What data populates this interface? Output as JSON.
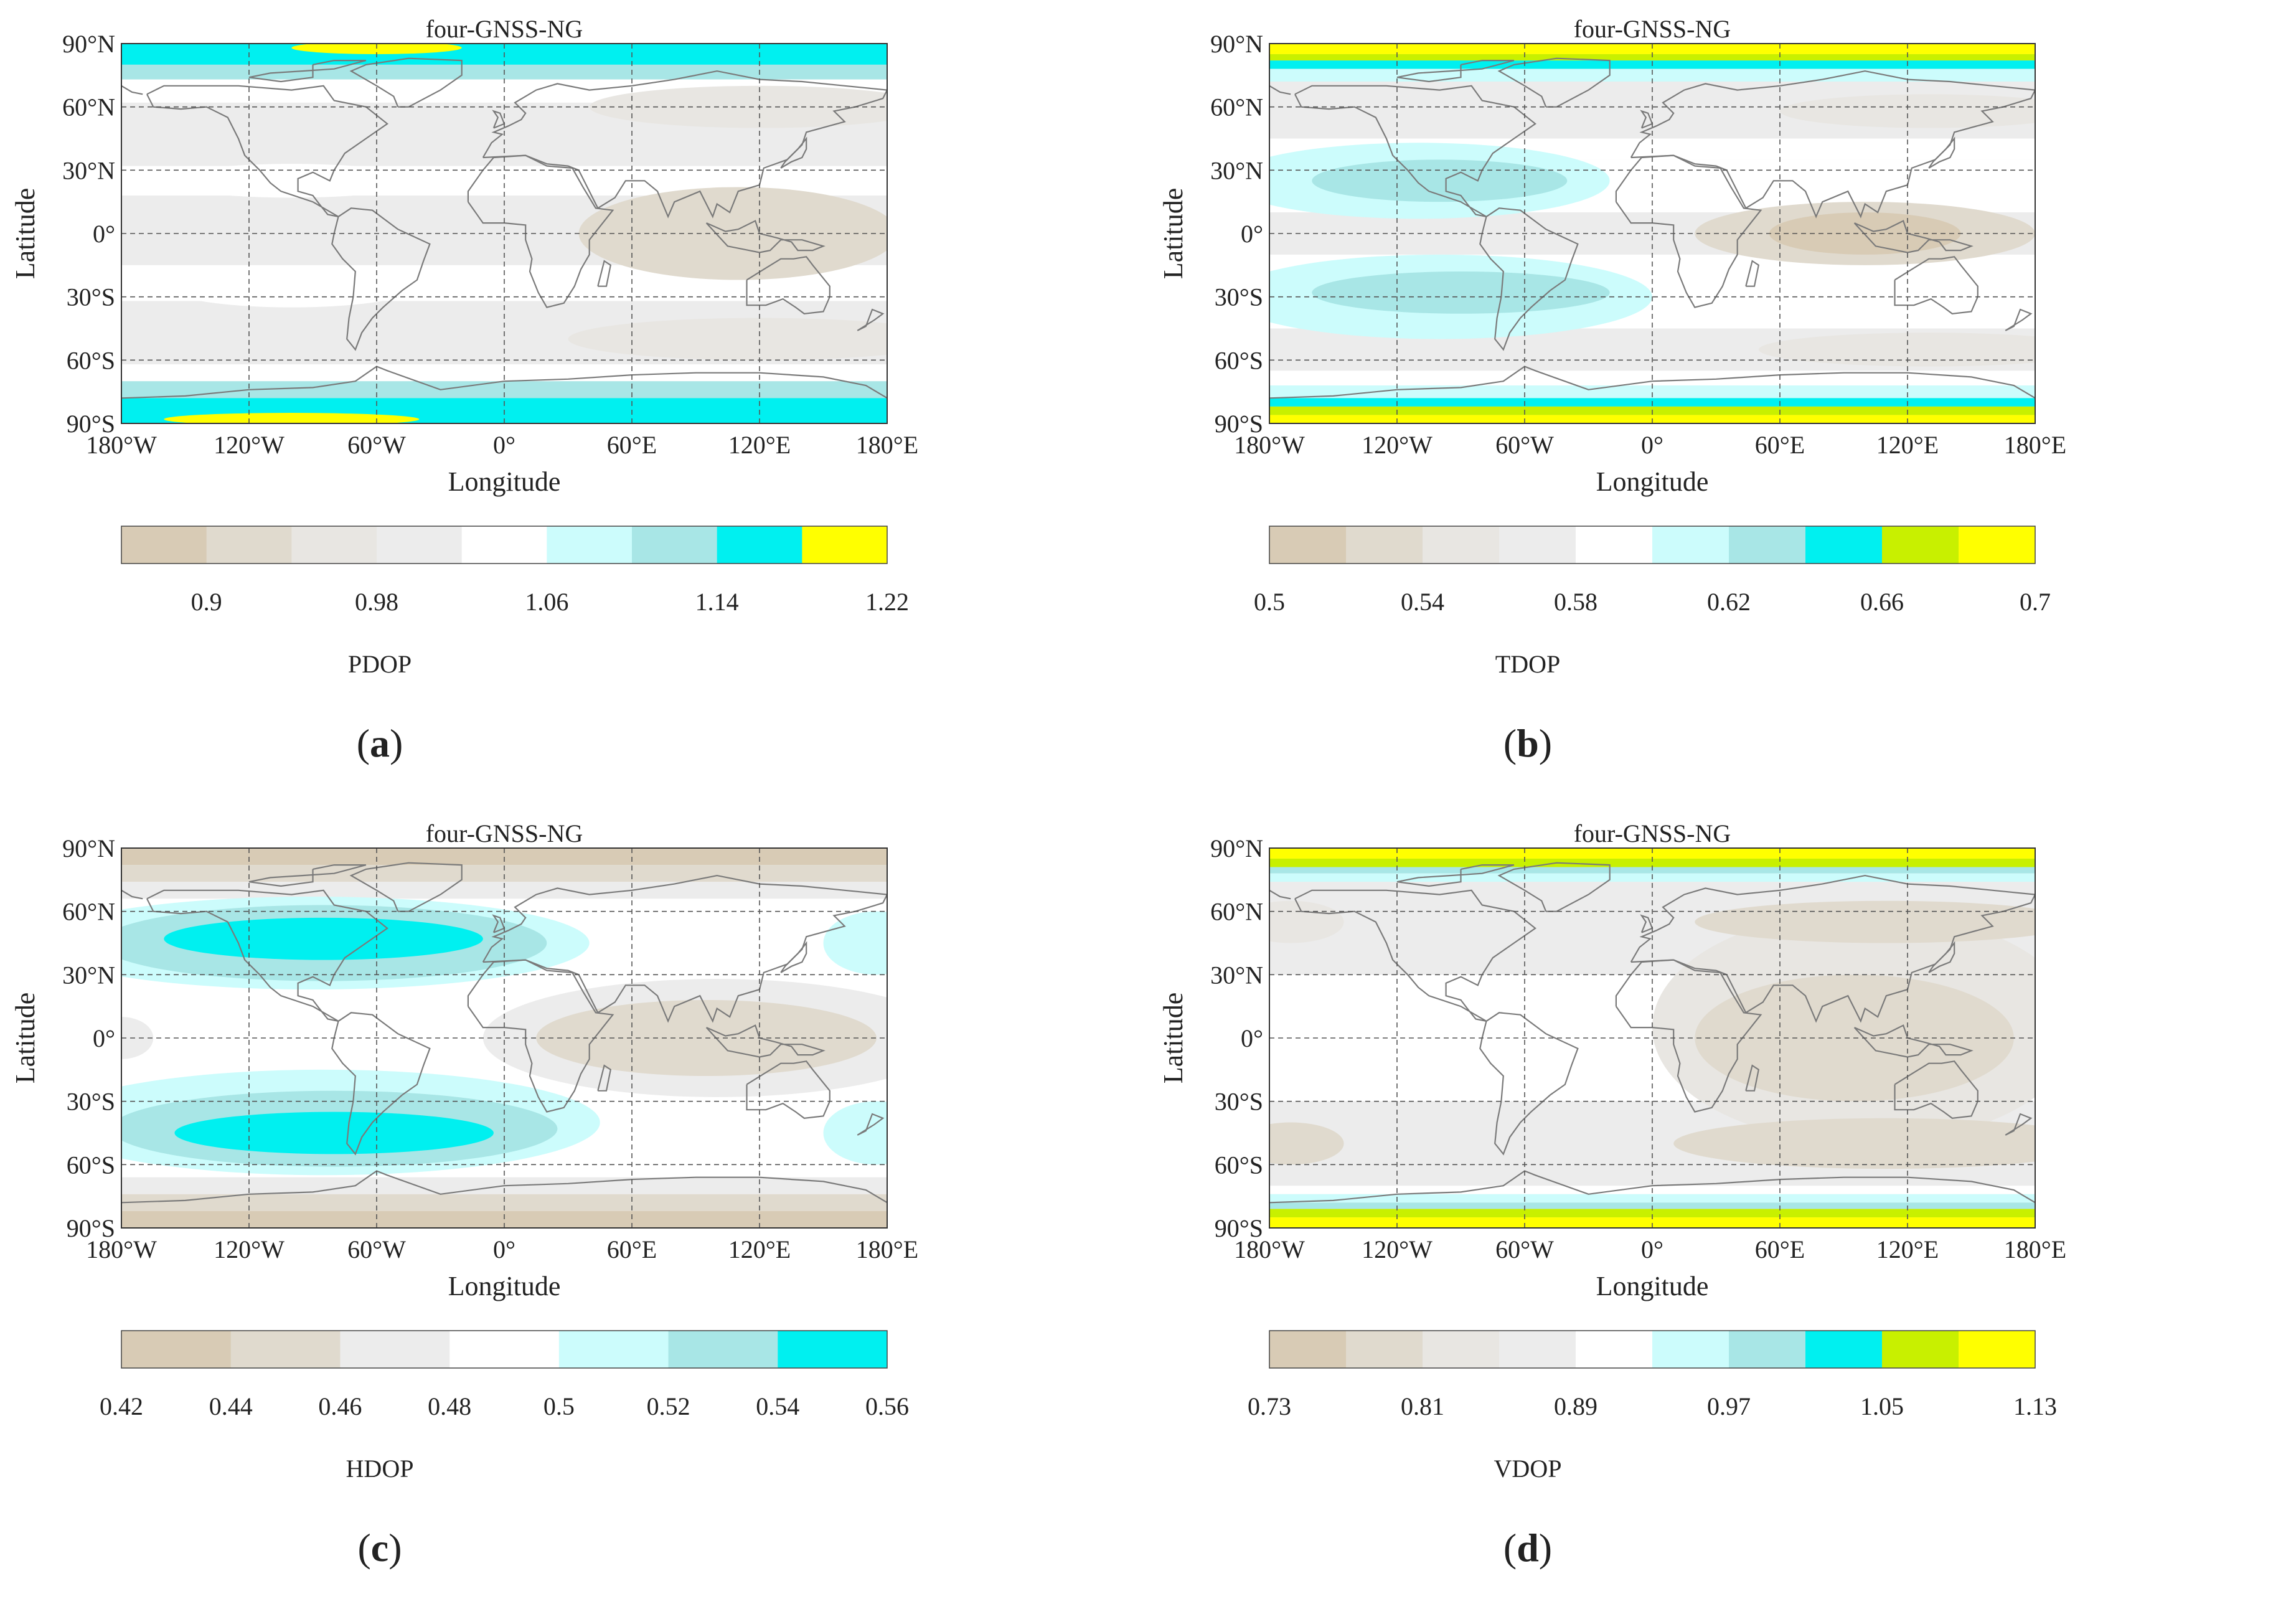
{
  "chart_data": [
    {
      "type": "heatmap",
      "panel_label": "a",
      "title": "four-GNSS-NG",
      "xlabel": "Longitude",
      "ylabel": "Latitude",
      "x_ticks": [
        "180°W",
        "120°W",
        "60°W",
        "0°",
        "60°E",
        "120°E",
        "180°E"
      ],
      "y_ticks": [
        "90°N",
        "60°N",
        "30°N",
        "0°",
        "30°S",
        "60°S",
        "90°S"
      ],
      "xlim": [
        -180,
        180
      ],
      "ylim": [
        -90,
        90
      ],
      "colorbar": {
        "label": "PDOP",
        "ticks": [
          "0.9",
          "0.98",
          "1.06",
          "1.14",
          "1.22"
        ],
        "colors": [
          "#d8cbb5",
          "#e0dace",
          "#e8e6e2",
          "#ececec",
          "#ffffff",
          "#ccfcfc",
          "#a8e6e6",
          "#00f0f0",
          "#ffff00"
        ]
      },
      "bands": [
        {
          "lat": [
            80,
            90
          ],
          "level": 7
        },
        {
          "lat": [
            73,
            80
          ],
          "level": 6
        },
        {
          "lat": [
            62,
            73
          ],
          "level": 4
        },
        {
          "lat": [
            32,
            62
          ],
          "level": 3
        },
        {
          "lat": [
            18,
            32
          ],
          "level": 4
        },
        {
          "lat": [
            8,
            18
          ],
          "level": 3
        },
        {
          "lat": [
            -8,
            8
          ],
          "level": 3
        },
        {
          "lat": [
            -15,
            -8
          ],
          "level": 3
        },
        {
          "lat": [
            -32,
            -15
          ],
          "level": 4
        },
        {
          "lat": [
            -62,
            -32
          ],
          "level": 3
        },
        {
          "lat": [
            -70,
            -62
          ],
          "level": 4
        },
        {
          "lat": [
            -78,
            -70
          ],
          "level": 6
        },
        {
          "lat": [
            -90,
            -78
          ],
          "level": 7
        }
      ],
      "blobs": [
        {
          "lon": 110,
          "lat": 0,
          "rlon": 75,
          "rlat": 22,
          "level": 1
        },
        {
          "lon": 120,
          "lat": -50,
          "rlon": 90,
          "rlat": 10,
          "level": 2
        },
        {
          "lon": 120,
          "lat": 60,
          "rlon": 80,
          "rlat": 10,
          "level": 2
        },
        {
          "lon": -100,
          "lat": -25,
          "rlon": 60,
          "rlat": 10,
          "level": 4
        },
        {
          "lon": -100,
          "lat": 25,
          "rlon": 60,
          "rlat": 8,
          "level": 4
        },
        {
          "lon": -60,
          "lat": 88,
          "rlon": 40,
          "rlat": 3,
          "level": 8
        },
        {
          "lon": -100,
          "lat": -88,
          "rlon": 60,
          "rlat": 3,
          "level": 8
        }
      ]
    },
    {
      "type": "heatmap",
      "panel_label": "b",
      "title": "four-GNSS-NG",
      "xlabel": "Longitude",
      "ylabel": "Latitude",
      "x_ticks": [
        "180°W",
        "120°W",
        "60°W",
        "0°",
        "60°E",
        "120°E",
        "180°E"
      ],
      "y_ticks": [
        "90°N",
        "60°N",
        "30°N",
        "0°",
        "30°S",
        "60°S",
        "90°S"
      ],
      "xlim": [
        -180,
        180
      ],
      "ylim": [
        -90,
        90
      ],
      "colorbar": {
        "label": "TDOP",
        "ticks": [
          "0.5",
          "0.54",
          "0.58",
          "0.62",
          "0.66",
          "0.7"
        ],
        "colors": [
          "#d8cbb5",
          "#e0dace",
          "#e8e6e2",
          "#ececec",
          "#ffffff",
          "#ccfcfc",
          "#a8e6e6",
          "#00f0f0",
          "#c8f000",
          "#ffff00"
        ]
      },
      "bands": [
        {
          "lat": [
            85,
            90
          ],
          "level": 9
        },
        {
          "lat": [
            82,
            85
          ],
          "level": 8
        },
        {
          "lat": [
            78,
            82
          ],
          "level": 7
        },
        {
          "lat": [
            72,
            78
          ],
          "level": 5
        },
        {
          "lat": [
            45,
            72
          ],
          "level": 3
        },
        {
          "lat": [
            35,
            45
          ],
          "level": 4
        },
        {
          "lat": [
            10,
            35
          ],
          "level": 4
        },
        {
          "lat": [
            -10,
            10
          ],
          "level": 3
        },
        {
          "lat": [
            -45,
            -10
          ],
          "level": 4
        },
        {
          "lat": [
            -65,
            -45
          ],
          "level": 3
        },
        {
          "lat": [
            -72,
            -65
          ],
          "level": 4
        },
        {
          "lat": [
            -78,
            -72
          ],
          "level": 5
        },
        {
          "lat": [
            -82,
            -78
          ],
          "level": 7
        },
        {
          "lat": [
            -86,
            -82
          ],
          "level": 8
        },
        {
          "lat": [
            -90,
            -86
          ],
          "level": 9
        }
      ],
      "blobs": [
        {
          "lon": -110,
          "lat": 25,
          "rlon": 90,
          "rlat": 18,
          "level": 5
        },
        {
          "lon": -100,
          "lat": 25,
          "rlon": 60,
          "rlat": 10,
          "level": 6
        },
        {
          "lon": -100,
          "lat": -30,
          "rlon": 100,
          "rlat": 20,
          "level": 5
        },
        {
          "lon": -90,
          "lat": -28,
          "rlon": 70,
          "rlat": 10,
          "level": 6
        },
        {
          "lon": 100,
          "lat": 0,
          "rlon": 80,
          "rlat": 15,
          "level": 1
        },
        {
          "lon": 100,
          "lat": 0,
          "rlon": 45,
          "rlat": 10,
          "level": 0
        },
        {
          "lon": 130,
          "lat": -55,
          "rlon": 80,
          "rlat": 8,
          "level": 2
        },
        {
          "lon": 130,
          "lat": 58,
          "rlon": 70,
          "rlat": 8,
          "level": 2
        }
      ]
    },
    {
      "type": "heatmap",
      "panel_label": "c",
      "title": "four-GNSS-NG",
      "xlabel": "Longitude",
      "ylabel": "Latitude",
      "x_ticks": [
        "180°W",
        "120°W",
        "60°W",
        "0°",
        "60°E",
        "120°E",
        "180°E"
      ],
      "y_ticks": [
        "90°N",
        "60°N",
        "30°N",
        "0°",
        "30°S",
        "60°S",
        "90°S"
      ],
      "xlim": [
        -180,
        180
      ],
      "ylim": [
        -90,
        90
      ],
      "colorbar": {
        "label": "HDOP",
        "ticks": [
          "0.42",
          "0.44",
          "0.46",
          "0.48",
          "0.5",
          "0.52",
          "0.54",
          "0.56"
        ],
        "colors": [
          "#d8cbb5",
          "#e0dace",
          "#ececec",
          "#ffffff",
          "#ccfcfc",
          "#a8e6e6",
          "#00f0f0"
        ]
      },
      "bands": [
        {
          "lat": [
            82,
            90
          ],
          "level": 0
        },
        {
          "lat": [
            74,
            82
          ],
          "level": 1
        },
        {
          "lat": [
            66,
            74
          ],
          "level": 2
        },
        {
          "lat": [
            60,
            66
          ],
          "level": 3
        },
        {
          "lat": [
            15,
            60
          ],
          "level": 3
        },
        {
          "lat": [
            -15,
            15
          ],
          "level": 3
        },
        {
          "lat": [
            -60,
            -15
          ],
          "level": 3
        },
        {
          "lat": [
            -66,
            -60
          ],
          "level": 3
        },
        {
          "lat": [
            -74,
            -66
          ],
          "level": 2
        },
        {
          "lat": [
            -82,
            -74
          ],
          "level": 1
        },
        {
          "lat": [
            -90,
            -82
          ],
          "level": 0
        }
      ],
      "blobs": [
        {
          "lon": -90,
          "lat": 45,
          "rlon": 130,
          "rlat": 22,
          "level": 4
        },
        {
          "lon": -85,
          "lat": 45,
          "rlon": 105,
          "rlat": 18,
          "level": 5
        },
        {
          "lon": -85,
          "lat": 47,
          "rlon": 75,
          "rlat": 10,
          "level": 6
        },
        {
          "lon": -85,
          "lat": -40,
          "rlon": 130,
          "rlat": 25,
          "level": 4
        },
        {
          "lon": -80,
          "lat": -43,
          "rlon": 105,
          "rlat": 18,
          "level": 5
        },
        {
          "lon": -80,
          "lat": -45,
          "rlon": 75,
          "rlat": 10,
          "level": 6
        },
        {
          "lon": 100,
          "lat": 0,
          "rlon": 110,
          "rlat": 28,
          "level": 2
        },
        {
          "lon": 95,
          "lat": 0,
          "rlon": 80,
          "rlat": 18,
          "level": 1
        },
        {
          "lon": 175,
          "lat": 45,
          "rlon": 25,
          "rlat": 15,
          "level": 4
        },
        {
          "lon": 175,
          "lat": -45,
          "rlon": 25,
          "rlat": 15,
          "level": 4
        },
        {
          "lon": -180,
          "lat": 0,
          "rlon": 15,
          "rlat": 10,
          "level": 2
        }
      ]
    },
    {
      "type": "heatmap",
      "panel_label": "d",
      "title": "four-GNSS-NG",
      "xlabel": "Longitude",
      "ylabel": "Latitude",
      "x_ticks": [
        "180°W",
        "120°W",
        "60°W",
        "0°",
        "60°E",
        "120°E",
        "180°E"
      ],
      "y_ticks": [
        "90°N",
        "60°N",
        "30°N",
        "0°",
        "30°S",
        "60°S",
        "90°S"
      ],
      "xlim": [
        -180,
        180
      ],
      "ylim": [
        -90,
        90
      ],
      "colorbar": {
        "label": "VDOP",
        "ticks": [
          "0.73",
          "0.81",
          "0.89",
          "0.97",
          "1.05",
          "1.13"
        ],
        "colors": [
          "#d8cbb5",
          "#e0dace",
          "#e8e6e2",
          "#ececec",
          "#ffffff",
          "#ccfcfc",
          "#a8e6e6",
          "#00f0f0",
          "#c8f000",
          "#ffff00"
        ]
      },
      "bands": [
        {
          "lat": [
            85,
            90
          ],
          "level": 9
        },
        {
          "lat": [
            81,
            85
          ],
          "level": 8
        },
        {
          "lat": [
            78,
            81
          ],
          "level": 6
        },
        {
          "lat": [
            74,
            78
          ],
          "level": 5
        },
        {
          "lat": [
            30,
            74
          ],
          "level": 3
        },
        {
          "lat": [
            -30,
            30
          ],
          "level": 4
        },
        {
          "lat": [
            -70,
            -30
          ],
          "level": 3
        },
        {
          "lat": [
            -74,
            -70
          ],
          "level": 4
        },
        {
          "lat": [
            -78,
            -74
          ],
          "level": 5
        },
        {
          "lat": [
            -81,
            -78
          ],
          "level": 6
        },
        {
          "lat": [
            -85,
            -81
          ],
          "level": 8
        },
        {
          "lat": [
            -90,
            -85
          ],
          "level": 9
        }
      ],
      "blobs": [
        {
          "lon": 100,
          "lat": 5,
          "rlon": 100,
          "rlat": 55,
          "level": 2
        },
        {
          "lon": 95,
          "lat": 0,
          "rlon": 75,
          "rlat": 30,
          "level": 1
        },
        {
          "lon": 110,
          "lat": -50,
          "rlon": 100,
          "rlat": 12,
          "level": 1
        },
        {
          "lon": 110,
          "lat": 55,
          "rlon": 90,
          "rlat": 10,
          "level": 1
        },
        {
          "lon": -170,
          "lat": 55,
          "rlon": 25,
          "rlat": 10,
          "level": 2
        },
        {
          "lon": -170,
          "lat": -50,
          "rlon": 25,
          "rlat": 10,
          "level": 1
        },
        {
          "lon": -180,
          "lat": 0,
          "rlon": 30,
          "rlat": 20,
          "level": 4
        }
      ]
    }
  ]
}
